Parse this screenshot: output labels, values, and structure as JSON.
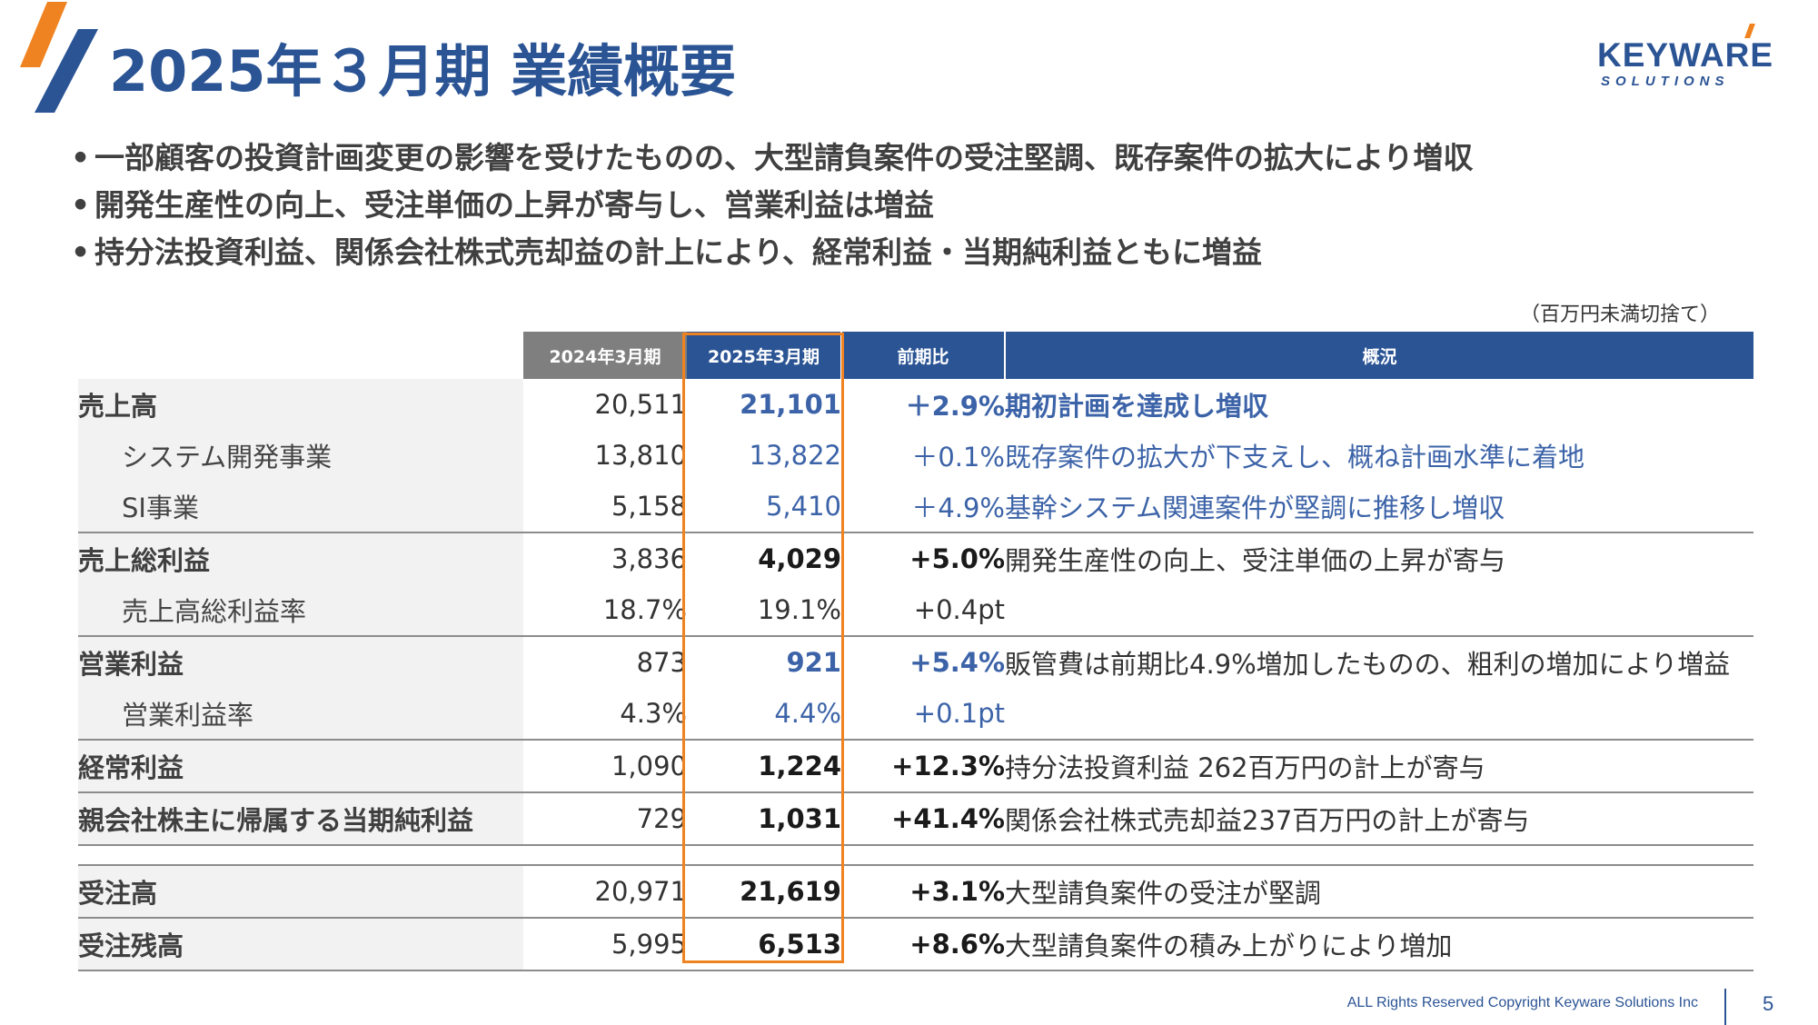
{
  "header": {
    "title": "2025年３月期 業績概要",
    "logo_text": "KEYWARE",
    "logo_sub": "SOLUTIONS"
  },
  "bullets": [
    "一部顧客の投資計画変更の影響を受けたものの、大型請負案件の受注堅調、既存案件の拡大により増収",
    "開発生産性の向上、受注単価の上昇が寄与し、営業利益は増益",
    "持分法投資利益、関係会社株式売却益の計上により、経常利益・当期純利益ともに増益"
  ],
  "bullet_marker": "•",
  "unit_note": "（百万円未満切捨て）",
  "table": {
    "headers": {
      "prev": "2024年3月期",
      "curr": "2025年3月期",
      "ratio": "前期比",
      "summary": "概況"
    },
    "rows": [
      {
        "label": "売上高",
        "prev": "20,511",
        "curr": "21,101",
        "ratio": "＋2.9%",
        "summary": "期初計画を達成し増収"
      },
      {
        "label": "システム開発事業",
        "prev": "13,810",
        "curr": "13,822",
        "ratio": "＋0.1%",
        "summary": "既存案件の拡大が下支えし、概ね計画水準に着地"
      },
      {
        "label": "SI事業",
        "prev": "5,158",
        "curr": "5,410",
        "ratio": "＋4.9%",
        "summary": "基幹システム関連案件が堅調に推移し増収"
      },
      {
        "label": "売上総利益",
        "prev": "3,836",
        "curr": "4,029",
        "ratio": "+5.0%",
        "summary": "開発生産性の向上、受注単価の上昇が寄与"
      },
      {
        "label": "売上高総利益率",
        "prev": "18.7%",
        "curr": "19.1%",
        "ratio": "+0.4pt",
        "summary": ""
      },
      {
        "label": "営業利益",
        "prev": "873",
        "curr": "921",
        "ratio": "+5.4%",
        "summary": "販管費は前期比4.9%増加したものの、粗利の増加により増益"
      },
      {
        "label": "営業利益率",
        "prev": "4.3%",
        "curr": "4.4%",
        "ratio": "+0.1pt",
        "summary": ""
      },
      {
        "label": "経常利益",
        "prev": "1,090",
        "curr": "1,224",
        "ratio": "+12.3%",
        "summary": "持分法投資利益 262百万円の計上が寄与"
      },
      {
        "label": "親会社株主に帰属する当期純利益",
        "prev": "729",
        "curr": "1,031",
        "ratio": "+41.4%",
        "summary": "関係会社株式売却益237百万円の計上が寄与"
      },
      {
        "label": "受注高",
        "prev": "20,971",
        "curr": "21,619",
        "ratio": "+3.1%",
        "summary": "大型請負案件の受注が堅調"
      },
      {
        "label": "受注残高",
        "prev": "5,995",
        "curr": "6,513",
        "ratio": "+8.6%",
        "summary": "大型請負案件の積み上がりにより増加"
      }
    ]
  },
  "footer": {
    "copyright": "ALL Rights Reserved Copyright Keyware Solutions Inc",
    "page": "5"
  },
  "colors": {
    "brand_blue": "#2b5495",
    "accent_orange": "#f08321",
    "header_gray": "#7f7f7f"
  }
}
